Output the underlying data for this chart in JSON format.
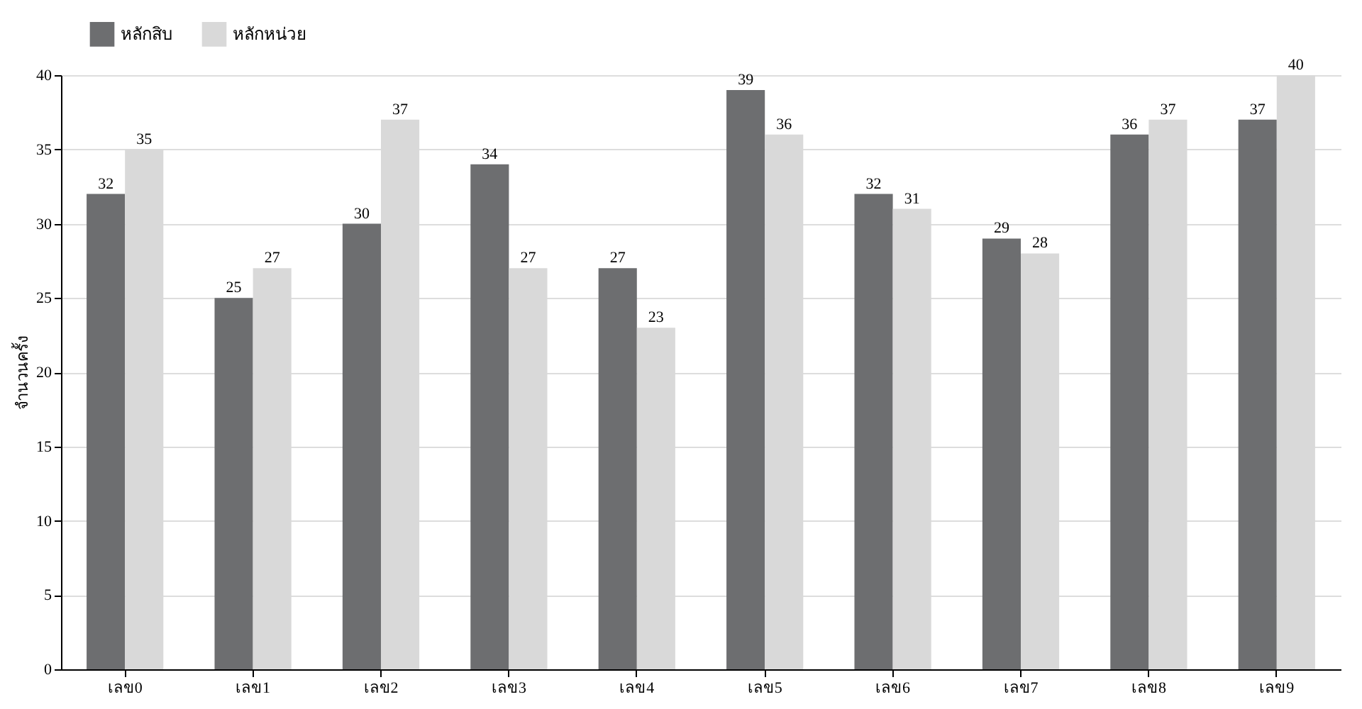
{
  "chart_data": {
    "type": "bar",
    "ylabel": "จำนวนครั้ง",
    "categories": [
      "เลข0",
      "เลข1",
      "เลข2",
      "เลข3",
      "เลข4",
      "เลข5",
      "เลข6",
      "เลข7",
      "เลข8",
      "เลข9"
    ],
    "series": [
      {
        "name": "หลักสิบ",
        "color": "#6d6e70",
        "values": [
          32,
          25,
          30,
          34,
          27,
          39,
          32,
          29,
          36,
          37
        ]
      },
      {
        "name": "หลักหน่วย",
        "color": "#d9d9d9",
        "values": [
          35,
          27,
          37,
          27,
          23,
          36,
          31,
          28,
          37,
          40
        ]
      }
    ],
    "ylim": [
      0,
      40
    ],
    "yticks": [
      0,
      5,
      10,
      15,
      20,
      25,
      30,
      35,
      40
    ],
    "grid": "y",
    "legend": "top left",
    "data_labels": true
  }
}
